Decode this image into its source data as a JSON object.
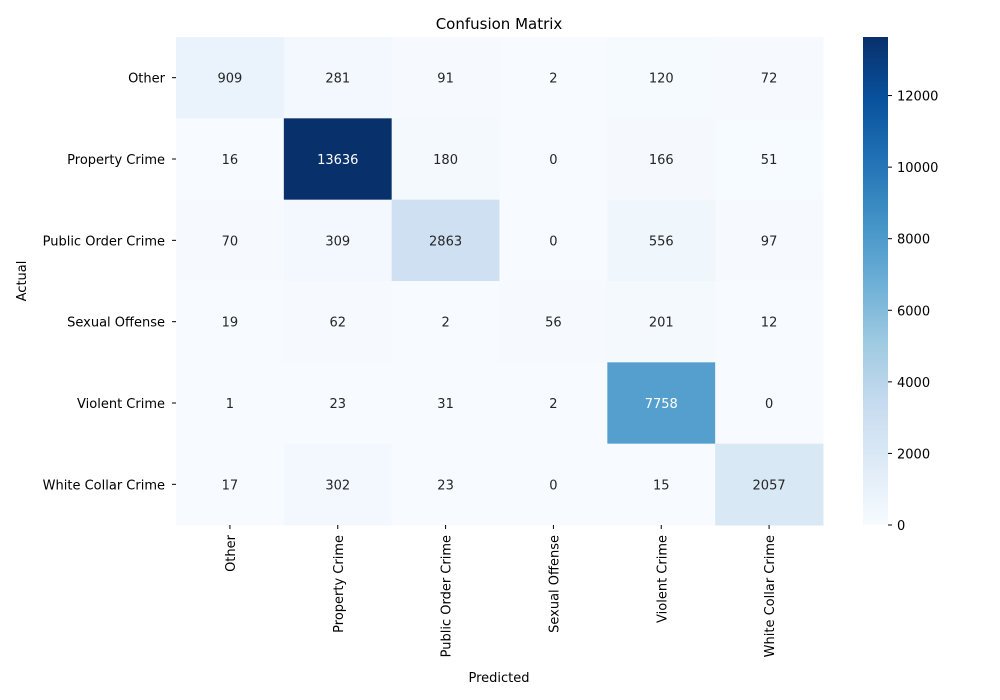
{
  "chart_data": {
    "type": "heatmap",
    "title": "Confusion Matrix",
    "xlabel": "Predicted",
    "ylabel": "Actual",
    "x_categories": [
      "Other",
      "Property Crime",
      "Public Order Crime",
      "Sexual Offense",
      "Violent Crime",
      "White Collar Crime"
    ],
    "y_categories": [
      "Other",
      "Property Crime",
      "Public Order Crime",
      "Sexual Offense",
      "Violent Crime",
      "White Collar Crime"
    ],
    "matrix": [
      [
        909,
        281,
        91,
        2,
        120,
        72
      ],
      [
        16,
        13636,
        180,
        0,
        166,
        51
      ],
      [
        70,
        309,
        2863,
        0,
        556,
        97
      ],
      [
        19,
        62,
        2,
        56,
        201,
        12
      ],
      [
        1,
        23,
        31,
        2,
        7758,
        0
      ],
      [
        17,
        302,
        23,
        0,
        15,
        2057
      ]
    ],
    "colormap": "Blues",
    "vmin": 0,
    "vmax": 13636,
    "colorbar_ticks": [
      0,
      2000,
      4000,
      6000,
      8000,
      10000,
      12000
    ],
    "colors": {
      "low": "#f7fbff",
      "high": "#08306b",
      "text_dark": "#262626",
      "text_light": "#ffffff"
    }
  }
}
